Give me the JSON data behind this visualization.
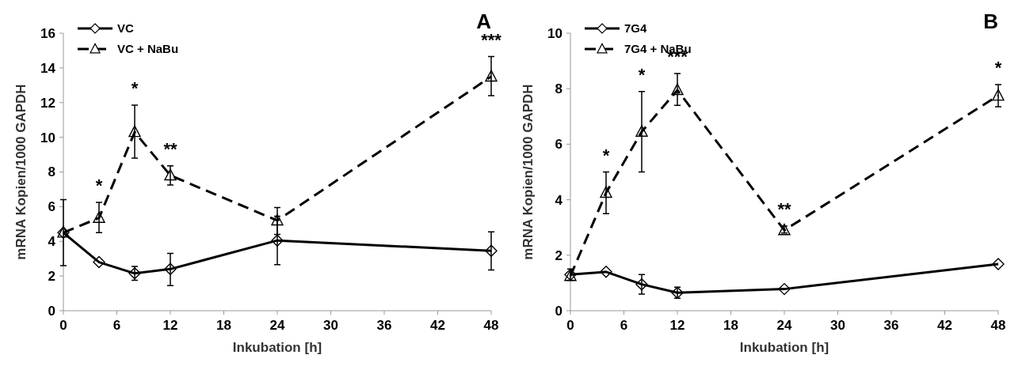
{
  "chart_data": [
    {
      "type": "line",
      "title": "A",
      "xlabel": "Inkubation [h]",
      "ylabel": "mRNA Kopien/1000 GAPDH",
      "x": [
        0,
        4,
        8,
        12,
        24,
        48
      ],
      "xlim": [
        0,
        48
      ],
      "xticks": [
        0,
        6,
        12,
        18,
        24,
        30,
        36,
        42,
        48
      ],
      "ylim": [
        0,
        16
      ],
      "yticks": [
        0,
        2,
        4,
        6,
        8,
        10,
        12,
        14,
        16
      ],
      "grid": false,
      "legend": "top left",
      "series": [
        {
          "name": "VC",
          "color": "#000000",
          "marker": "diamond",
          "line_style": "solid",
          "values": [
            4.5,
            2.8,
            2.15,
            2.4,
            4.05,
            3.45
          ],
          "errors": [
            [
              2.6,
              6.4
            ],
            null,
            [
              1.75,
              2.55
            ],
            [
              1.45,
              3.3
            ],
            [
              2.65,
              5.45
            ],
            [
              2.35,
              4.55
            ]
          ]
        },
        {
          "name": "VC + NaBu",
          "color": "#000000",
          "marker": "triangle",
          "line_style": "dashed",
          "values": [
            4.5,
            5.35,
            10.3,
            7.8,
            5.2,
            13.5
          ],
          "errors": [
            null,
            [
              4.5,
              6.25
            ],
            [
              8.8,
              11.85
            ],
            [
              7.25,
              8.35
            ],
            [
              4.4,
              5.95
            ],
            [
              12.4,
              14.65
            ]
          ]
        }
      ],
      "annotations": [
        {
          "text": "*",
          "x": 4,
          "y": 6.25
        },
        {
          "text": "*",
          "x": 8,
          "y": 11.85
        },
        {
          "text": "**",
          "x": 12,
          "y": 8.35
        },
        {
          "text": "***",
          "x": 48,
          "y": 14.65
        }
      ]
    },
    {
      "type": "line",
      "title": "B",
      "xlabel": "Inkubation [h]",
      "ylabel": "mRNA Kopien/1000 GAPDH",
      "x": [
        0,
        4,
        8,
        12,
        24,
        48
      ],
      "xlim": [
        0,
        48
      ],
      "xticks": [
        0,
        6,
        12,
        18,
        24,
        30,
        36,
        42,
        48
      ],
      "ylim": [
        0,
        10
      ],
      "yticks": [
        0,
        2,
        4,
        6,
        8,
        10
      ],
      "grid": false,
      "legend": "top left",
      "series": [
        {
          "name": "7G4",
          "color": "#000000",
          "marker": "diamond",
          "line_style": "solid",
          "values": [
            1.3,
            1.4,
            0.95,
            0.65,
            0.78,
            1.68
          ],
          "errors": [
            [
              1.1,
              1.5
            ],
            null,
            [
              0.6,
              1.3
            ],
            [
              0.45,
              0.85
            ],
            null,
            null
          ]
        },
        {
          "name": "7G4 + NaBu",
          "color": "#000000",
          "marker": "triangle",
          "line_style": "dashed",
          "values": [
            1.25,
            4.25,
            6.45,
            7.95,
            2.9,
            7.75
          ],
          "errors": [
            null,
            [
              3.5,
              5.0
            ],
            [
              5.0,
              7.9
            ],
            [
              7.4,
              8.55
            ],
            [
              2.8,
              3.05
            ],
            [
              7.35,
              8.15
            ]
          ]
        }
      ],
      "annotations": [
        {
          "text": "*",
          "x": 4,
          "y": 5.0
        },
        {
          "text": "*",
          "x": 8,
          "y": 7.9
        },
        {
          "text": "***",
          "x": 12,
          "y": 8.55
        },
        {
          "text": "**",
          "x": 24,
          "y": 3.05
        },
        {
          "text": "*",
          "x": 48,
          "y": 8.15
        }
      ]
    }
  ]
}
